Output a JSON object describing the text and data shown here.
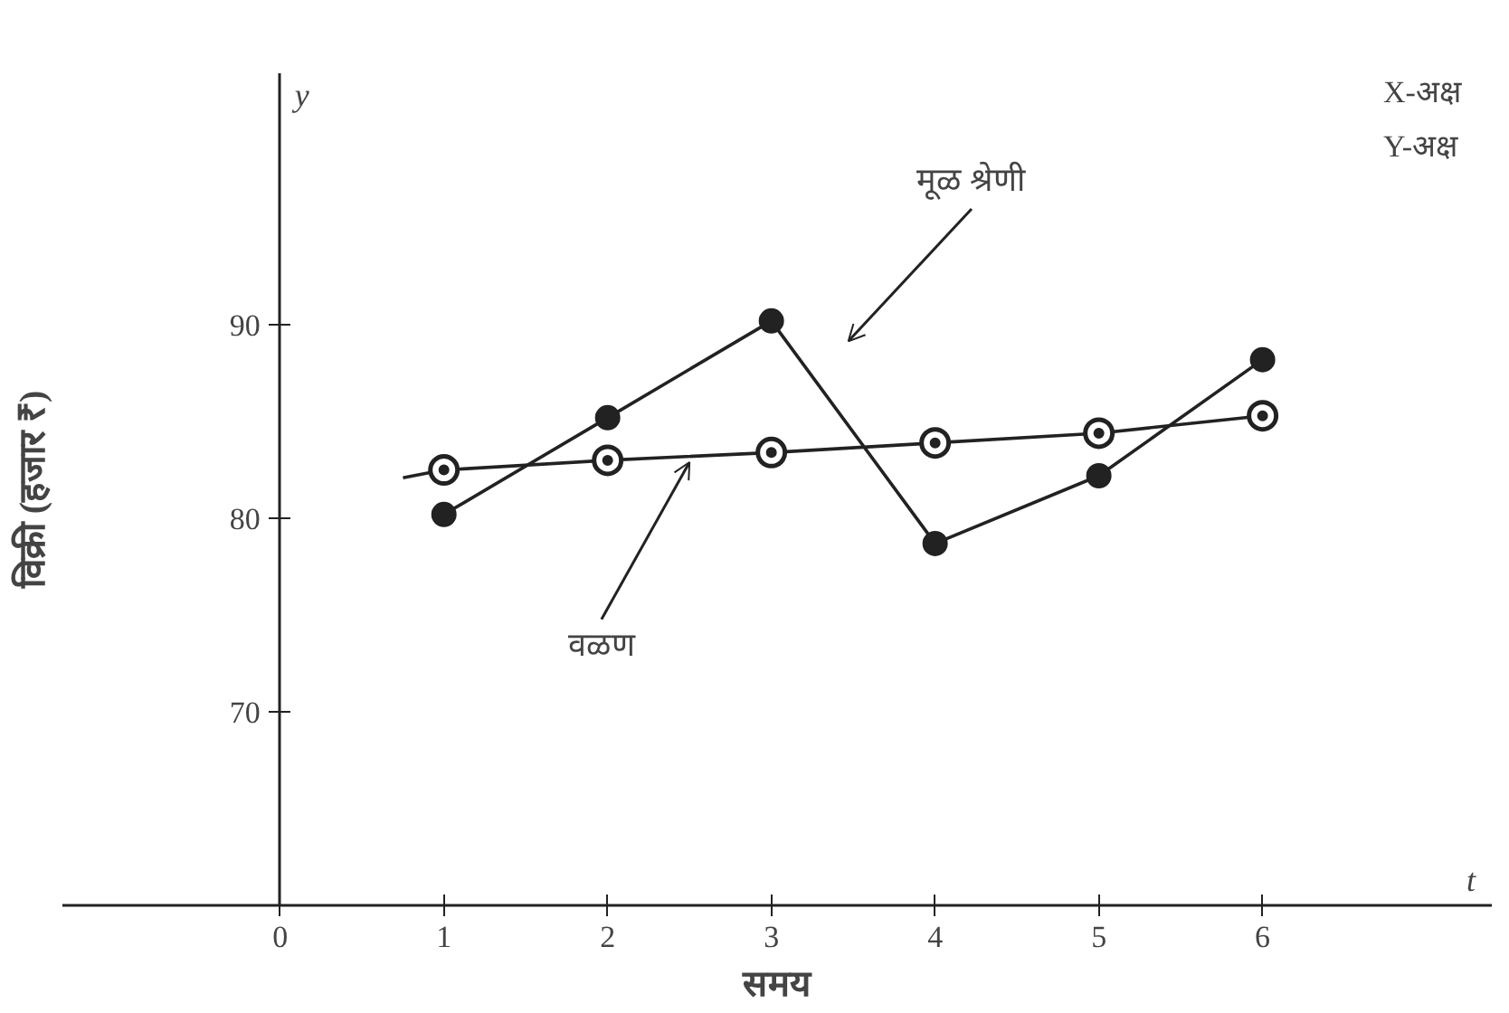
{
  "chart_data": {
    "type": "line",
    "xlabel": "समय",
    "ylabel": "विक्री (हजार ₹)",
    "xlim": [
      -1.33,
      7.4
    ],
    "ylim": [
      60,
      103
    ],
    "xticks": [
      {
        "value": 0,
        "label": "0"
      },
      1,
      2,
      3,
      4,
      5,
      6
    ],
    "yticks": [
      70,
      80,
      90
    ],
    "grid": false,
    "legend": false,
    "marker": "circle",
    "series": [
      {
        "name": "मूळ श्रेणी",
        "color": "#222222",
        "x": [
          1,
          2,
          3,
          4,
          5,
          6
        ],
        "values": [
          80.2,
          85.2,
          90.2,
          78.7,
          82.2,
          88.2
        ]
      },
      {
        "name": "वळण",
        "color": "#222222",
        "x": [
          0.75,
          1,
          2,
          3,
          4,
          5,
          6
        ],
        "values": [
          82.1,
          82.5,
          83.0,
          83.4,
          83.9,
          84.4,
          85.3
        ],
        "marker": "circle"
      }
    ],
    "annotations": [
      "y",
      "t",
      "X-अक्ष",
      "Y-अक्ष"
    ]
  }
}
